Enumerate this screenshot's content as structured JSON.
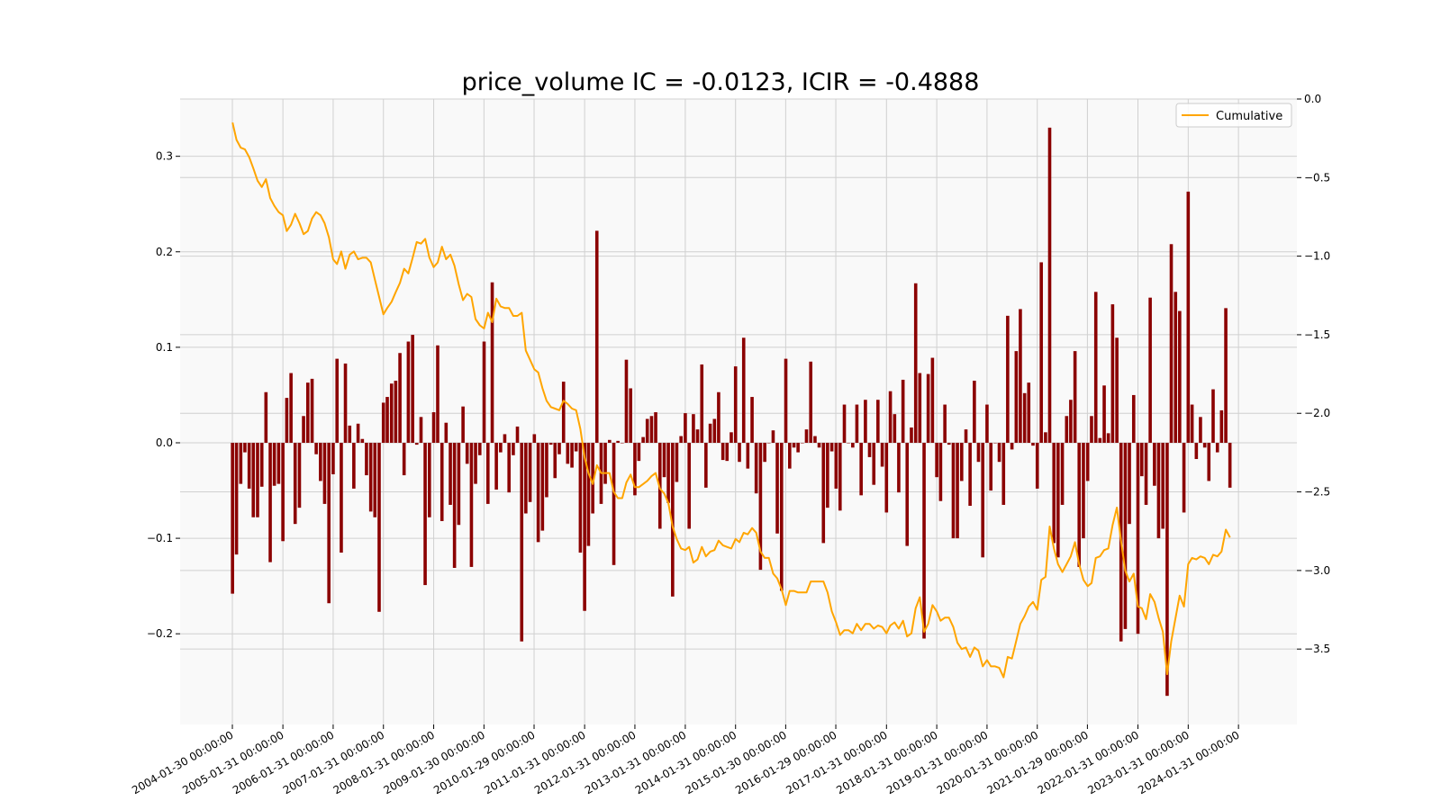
{
  "colors": {
    "bar": "#8b0000",
    "line": "#ffa500",
    "plot_bg": "#f9f9f9",
    "grid": "#d0d0d0"
  },
  "chart_data": {
    "type": "bar",
    "title": "price_volume IC = -0.0123, ICIR = -0.4888",
    "xlabel": "",
    "ylabel": "",
    "grid": true,
    "legend_position": "top-right",
    "x_ticks": [
      "2004-01-30 00:00:00",
      "2005-01-31 00:00:00",
      "2006-01-31 00:00:00",
      "2007-01-31 00:00:00",
      "2008-01-31 00:00:00",
      "2009-01-30 00:00:00",
      "2010-01-29 00:00:00",
      "2011-01-31 00:00:00",
      "2012-01-31 00:00:00",
      "2013-01-31 00:00:00",
      "2014-01-31 00:00:00",
      "2015-01-30 00:00:00",
      "2016-01-29 00:00:00",
      "2017-01-31 00:00:00",
      "2018-01-31 00:00:00",
      "2019-01-31 00:00:00",
      "2020-01-31 00:00:00",
      "2021-01-29 00:00:00",
      "2022-01-31 00:00:00",
      "2023-01-31 00:00:00",
      "2024-01-31 00:00:00"
    ],
    "x_range": [
      "2004-01-30",
      "2024-03-29"
    ],
    "y_left": {
      "ylim": [
        -0.295,
        0.36
      ],
      "ticks": [
        -0.2,
        -0.1,
        0.0,
        0.1,
        0.2,
        0.3
      ],
      "tick_labels": [
        "−0.2",
        "−0.1",
        "0.0",
        "0.1",
        "0.2",
        "0.3"
      ]
    },
    "y_right": {
      "ylim": [
        -3.98,
        0.0
      ],
      "ticks": [
        -3.5,
        -3.0,
        -2.5,
        -2.0,
        -1.5,
        -1.0,
        -0.5,
        0.0
      ],
      "tick_labels": [
        "−3.5",
        "−3.0",
        "−2.5",
        "−2.0",
        "−1.5",
        "−1.0",
        "−0.5",
        "0.0"
      ]
    },
    "start_month": "2004-01",
    "series": [
      {
        "type": "bar",
        "axis": "left",
        "frequency": "monthly",
        "values": [
          -0.158,
          -0.117,
          -0.043,
          -0.01,
          -0.048,
          -0.078,
          -0.078,
          -0.046,
          0.053,
          -0.125,
          -0.045,
          -0.043,
          -0.103,
          0.047,
          0.073,
          -0.085,
          -0.068,
          0.028,
          0.063,
          0.067,
          -0.012,
          -0.04,
          -0.064,
          -0.168,
          -0.033,
          0.088,
          -0.115,
          0.083,
          0.018,
          -0.048,
          0.02,
          0.004,
          -0.034,
          -0.072,
          -0.078,
          -0.177,
          0.042,
          0.048,
          0.062,
          0.065,
          0.094,
          -0.034,
          0.106,
          0.113,
          -0.002,
          0.027,
          -0.149,
          -0.078,
          0.032,
          0.102,
          -0.082,
          0.021,
          -0.065,
          -0.131,
          -0.086,
          0.038,
          -0.022,
          -0.13,
          -0.043,
          -0.013,
          0.106,
          -0.064,
          0.168,
          -0.049,
          -0.01,
          0.009,
          -0.052,
          -0.013,
          0.017,
          -0.208,
          -0.074,
          -0.062,
          0.009,
          -0.104,
          -0.092,
          -0.057,
          -0.002,
          -0.037,
          -0.012,
          0.064,
          -0.022,
          -0.026,
          -0.009,
          -0.115,
          -0.176,
          -0.108,
          -0.074,
          0.222,
          -0.064,
          -0.043,
          0.003,
          -0.128,
          0.002,
          0.0,
          0.087,
          0.057,
          -0.055,
          -0.019,
          0.006,
          0.025,
          0.028,
          0.032,
          -0.09,
          -0.036,
          -0.063,
          -0.161,
          -0.041,
          0.007,
          0.031,
          -0.09,
          0.03,
          0.014,
          0.082,
          -0.047,
          0.02,
          0.025,
          0.053,
          -0.018,
          -0.019,
          0.011,
          0.08,
          -0.02,
          0.11,
          -0.027,
          0.048,
          -0.053,
          -0.133,
          -0.02,
          0.0,
          0.013,
          -0.095,
          -0.155,
          0.088,
          -0.027,
          -0.005,
          -0.01,
          0.0,
          0.014,
          0.085,
          0.007,
          -0.005,
          -0.105,
          -0.068,
          -0.009,
          -0.048,
          -0.071,
          0.04,
          0.0,
          -0.005,
          0.04,
          -0.055,
          0.045,
          -0.015,
          -0.044,
          0.045,
          -0.025,
          -0.073,
          0.054,
          0.03,
          -0.052,
          0.066,
          -0.108,
          0.016,
          0.167,
          0.073,
          -0.205,
          0.072,
          0.089,
          -0.036,
          -0.061,
          0.04,
          -0.002,
          -0.1,
          -0.1,
          -0.04,
          0.014,
          -0.066,
          0.065,
          -0.02,
          -0.12,
          0.04,
          -0.05,
          0.0,
          -0.02,
          -0.065,
          0.133,
          -0.007,
          0.096,
          0.14,
          0.052,
          0.063,
          -0.003,
          -0.048,
          0.189,
          0.011,
          0.33,
          -0.105,
          -0.12,
          -0.065,
          0.028,
          0.045,
          0.096,
          -0.13,
          -0.1,
          -0.04,
          0.028,
          0.158,
          0.005,
          0.06,
          0.01,
          0.145,
          0.11,
          -0.208,
          -0.195,
          -0.085,
          0.05,
          -0.2,
          -0.035,
          -0.065,
          0.152,
          -0.045,
          -0.1,
          -0.09,
          -0.265,
          0.208,
          0.158,
          0.138,
          -0.073,
          0.263,
          0.04,
          -0.017,
          0.027,
          -0.005,
          -0.04,
          0.056,
          -0.01,
          0.034,
          0.141,
          -0.047
        ]
      },
      {
        "type": "line",
        "name": "Cumulative",
        "axis": "right",
        "frequency": "monthly",
        "values": [
          -0.15,
          -0.26,
          -0.31,
          -0.32,
          -0.37,
          -0.44,
          -0.52,
          -0.56,
          -0.51,
          -0.63,
          -0.68,
          -0.72,
          -0.74,
          -0.84,
          -0.8,
          -0.73,
          -0.79,
          -0.86,
          -0.84,
          -0.76,
          -0.72,
          -0.74,
          -0.79,
          -0.88,
          -1.02,
          -1.05,
          -0.97,
          -1.08,
          -0.99,
          -0.97,
          -1.02,
          -1.01,
          -1.01,
          -1.04,
          -1.15,
          -1.26,
          -1.37,
          -1.33,
          -1.29,
          -1.23,
          -1.17,
          -1.08,
          -1.11,
          -1.01,
          -0.91,
          -0.92,
          -0.89,
          -1.01,
          -1.07,
          -1.04,
          -0.94,
          -1.02,
          -0.99,
          -1.06,
          -1.18,
          -1.28,
          -1.24,
          -1.26,
          -1.4,
          -1.44,
          -1.46,
          -1.36,
          -1.42,
          -1.27,
          -1.32,
          -1.33,
          -1.33,
          -1.38,
          -1.38,
          -1.36,
          -1.6,
          -1.66,
          -1.72,
          -1.74,
          -1.84,
          -1.92,
          -1.96,
          -1.97,
          -1.98,
          -1.92,
          -1.94,
          -1.97,
          -1.98,
          -2.1,
          -2.28,
          -2.38,
          -2.45,
          -2.33,
          -2.38,
          -2.38,
          -2.38,
          -2.5,
          -2.54,
          -2.54,
          -2.44,
          -2.39,
          -2.47,
          -2.47,
          -2.45,
          -2.43,
          -2.4,
          -2.38,
          -2.48,
          -2.51,
          -2.57,
          -2.72,
          -2.8,
          -2.86,
          -2.87,
          -2.85,
          -2.95,
          -2.93,
          -2.85,
          -2.91,
          -2.88,
          -2.87,
          -2.81,
          -2.84,
          -2.85,
          -2.86,
          -2.8,
          -2.82,
          -2.76,
          -2.77,
          -2.73,
          -2.76,
          -2.88,
          -2.92,
          -2.92,
          -3.02,
          -3.05,
          -3.12,
          -3.22,
          -3.13,
          -3.13,
          -3.14,
          -3.14,
          -3.14,
          -3.07,
          -3.07,
          -3.07,
          -3.07,
          -3.14,
          -3.26,
          -3.33,
          -3.41,
          -3.38,
          -3.38,
          -3.4,
          -3.34,
          -3.38,
          -3.34,
          -3.34,
          -3.37,
          -3.35,
          -3.36,
          -3.4,
          -3.35,
          -3.33,
          -3.37,
          -3.32,
          -3.42,
          -3.4,
          -3.24,
          -3.17,
          -3.39,
          -3.34,
          -3.22,
          -3.26,
          -3.32,
          -3.3,
          -3.3,
          -3.36,
          -3.46,
          -3.5,
          -3.49,
          -3.55,
          -3.49,
          -3.51,
          -3.61,
          -3.57,
          -3.61,
          -3.61,
          -3.62,
          -3.68,
          -3.55,
          -3.56,
          -3.45,
          -3.34,
          -3.29,
          -3.23,
          -3.2,
          -3.25,
          -3.06,
          -3.04,
          -2.72,
          -2.86,
          -2.96,
          -3.01,
          -2.96,
          -2.91,
          -2.82,
          -2.96,
          -3.06,
          -3.1,
          -3.08,
          -2.92,
          -2.91,
          -2.87,
          -2.86,
          -2.71,
          -2.6,
          -2.81,
          -3.0,
          -3.07,
          -3.02,
          -3.23,
          -3.24,
          -3.31,
          -3.15,
          -3.2,
          -3.3,
          -3.39,
          -3.66,
          -3.45,
          -3.3,
          -3.16,
          -3.23,
          -2.96,
          -2.92,
          -2.93,
          -2.91,
          -2.92,
          -2.96,
          -2.9,
          -2.91,
          -2.88,
          -2.74,
          -2.79
        ]
      }
    ]
  }
}
